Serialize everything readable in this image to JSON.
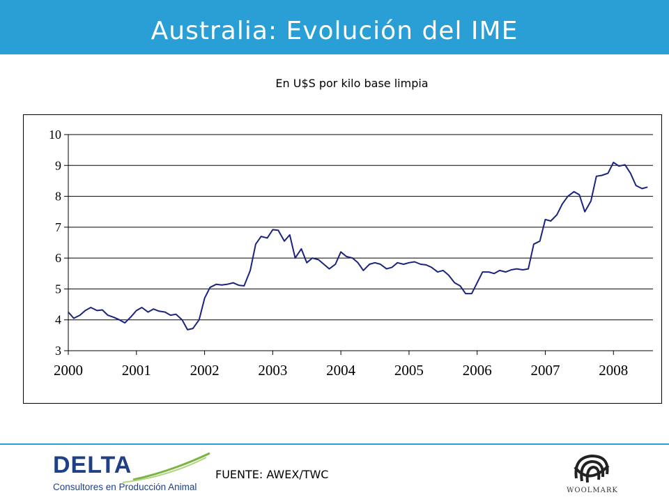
{
  "header": {
    "title": "Australia: Evolución del IME"
  },
  "chart_data": {
    "type": "line",
    "title": "",
    "subtitle": "En U$S por kilo base limpia",
    "xlabel": "",
    "ylabel": "",
    "ylim": [
      3,
      10
    ],
    "xlim": [
      2000,
      2008.58
    ],
    "grid": true,
    "legend": "none",
    "y_ticks": [
      "3",
      "4",
      "5",
      "6",
      "7",
      "8",
      "9",
      "10"
    ],
    "x_ticks": [
      "2000",
      "2001",
      "2002",
      "2003",
      "2004",
      "2005",
      "2006",
      "2007",
      "2008"
    ],
    "series": [
      {
        "color": "#1a237e",
        "points": [
          [
            2000.0,
            4.25
          ],
          [
            2000.08,
            4.05
          ],
          [
            2000.17,
            4.15
          ],
          [
            2000.25,
            4.3
          ],
          [
            2000.33,
            4.4
          ],
          [
            2000.42,
            4.3
          ],
          [
            2000.5,
            4.32
          ],
          [
            2000.58,
            4.15
          ],
          [
            2000.67,
            4.08
          ],
          [
            2000.75,
            4.0
          ],
          [
            2000.83,
            3.9
          ],
          [
            2000.92,
            4.1
          ],
          [
            2001.0,
            4.3
          ],
          [
            2001.08,
            4.4
          ],
          [
            2001.17,
            4.25
          ],
          [
            2001.25,
            4.35
          ],
          [
            2001.33,
            4.28
          ],
          [
            2001.42,
            4.25
          ],
          [
            2001.5,
            4.15
          ],
          [
            2001.58,
            4.18
          ],
          [
            2001.67,
            4.0
          ],
          [
            2001.75,
            3.68
          ],
          [
            2001.83,
            3.72
          ],
          [
            2001.92,
            4.0
          ],
          [
            2002.0,
            4.7
          ],
          [
            2002.08,
            5.05
          ],
          [
            2002.17,
            5.15
          ],
          [
            2002.25,
            5.13
          ],
          [
            2002.33,
            5.15
          ],
          [
            2002.42,
            5.2
          ],
          [
            2002.5,
            5.12
          ],
          [
            2002.58,
            5.1
          ],
          [
            2002.67,
            5.6
          ],
          [
            2002.75,
            6.45
          ],
          [
            2002.83,
            6.7
          ],
          [
            2002.92,
            6.65
          ],
          [
            2003.0,
            6.92
          ],
          [
            2003.08,
            6.9
          ],
          [
            2003.17,
            6.55
          ],
          [
            2003.25,
            6.75
          ],
          [
            2003.33,
            6.0
          ],
          [
            2003.42,
            6.3
          ],
          [
            2003.5,
            5.85
          ],
          [
            2003.58,
            6.0
          ],
          [
            2003.67,
            5.95
          ],
          [
            2003.75,
            5.8
          ],
          [
            2003.83,
            5.65
          ],
          [
            2003.92,
            5.8
          ],
          [
            2004.0,
            6.2
          ],
          [
            2004.08,
            6.05
          ],
          [
            2004.17,
            6.0
          ],
          [
            2004.25,
            5.85
          ],
          [
            2004.33,
            5.6
          ],
          [
            2004.42,
            5.8
          ],
          [
            2004.5,
            5.85
          ],
          [
            2004.58,
            5.8
          ],
          [
            2004.67,
            5.65
          ],
          [
            2004.75,
            5.7
          ],
          [
            2004.83,
            5.85
          ],
          [
            2004.92,
            5.8
          ],
          [
            2005.0,
            5.85
          ],
          [
            2005.08,
            5.88
          ],
          [
            2005.17,
            5.8
          ],
          [
            2005.25,
            5.78
          ],
          [
            2005.33,
            5.7
          ],
          [
            2005.42,
            5.55
          ],
          [
            2005.5,
            5.6
          ],
          [
            2005.58,
            5.45
          ],
          [
            2005.67,
            5.2
          ],
          [
            2005.75,
            5.1
          ],
          [
            2005.83,
            4.85
          ],
          [
            2005.92,
            4.85
          ],
          [
            2006.0,
            5.2
          ],
          [
            2006.08,
            5.55
          ],
          [
            2006.17,
            5.55
          ],
          [
            2006.25,
            5.5
          ],
          [
            2006.33,
            5.6
          ],
          [
            2006.42,
            5.55
          ],
          [
            2006.5,
            5.62
          ],
          [
            2006.58,
            5.65
          ],
          [
            2006.67,
            5.62
          ],
          [
            2006.75,
            5.65
          ],
          [
            2006.83,
            6.45
          ],
          [
            2006.92,
            6.55
          ],
          [
            2007.0,
            7.25
          ],
          [
            2007.08,
            7.2
          ],
          [
            2007.17,
            7.4
          ],
          [
            2007.25,
            7.75
          ],
          [
            2007.33,
            8.0
          ],
          [
            2007.42,
            8.15
          ],
          [
            2007.5,
            8.05
          ],
          [
            2007.58,
            7.5
          ],
          [
            2007.67,
            7.85
          ],
          [
            2007.75,
            8.65
          ],
          [
            2007.83,
            8.68
          ],
          [
            2007.92,
            8.75
          ],
          [
            2008.0,
            9.1
          ],
          [
            2008.08,
            8.98
          ],
          [
            2008.17,
            9.02
          ],
          [
            2008.25,
            8.75
          ],
          [
            2008.33,
            8.35
          ],
          [
            2008.42,
            8.25
          ],
          [
            2008.5,
            8.3
          ]
        ]
      }
    ]
  },
  "footer": {
    "source": "FUENTE: AWEX/TWC",
    "delta_name": "DELTA",
    "delta_tagline": "Consultores en Producción Animal",
    "woolmark_name": "WOOLMARK"
  }
}
